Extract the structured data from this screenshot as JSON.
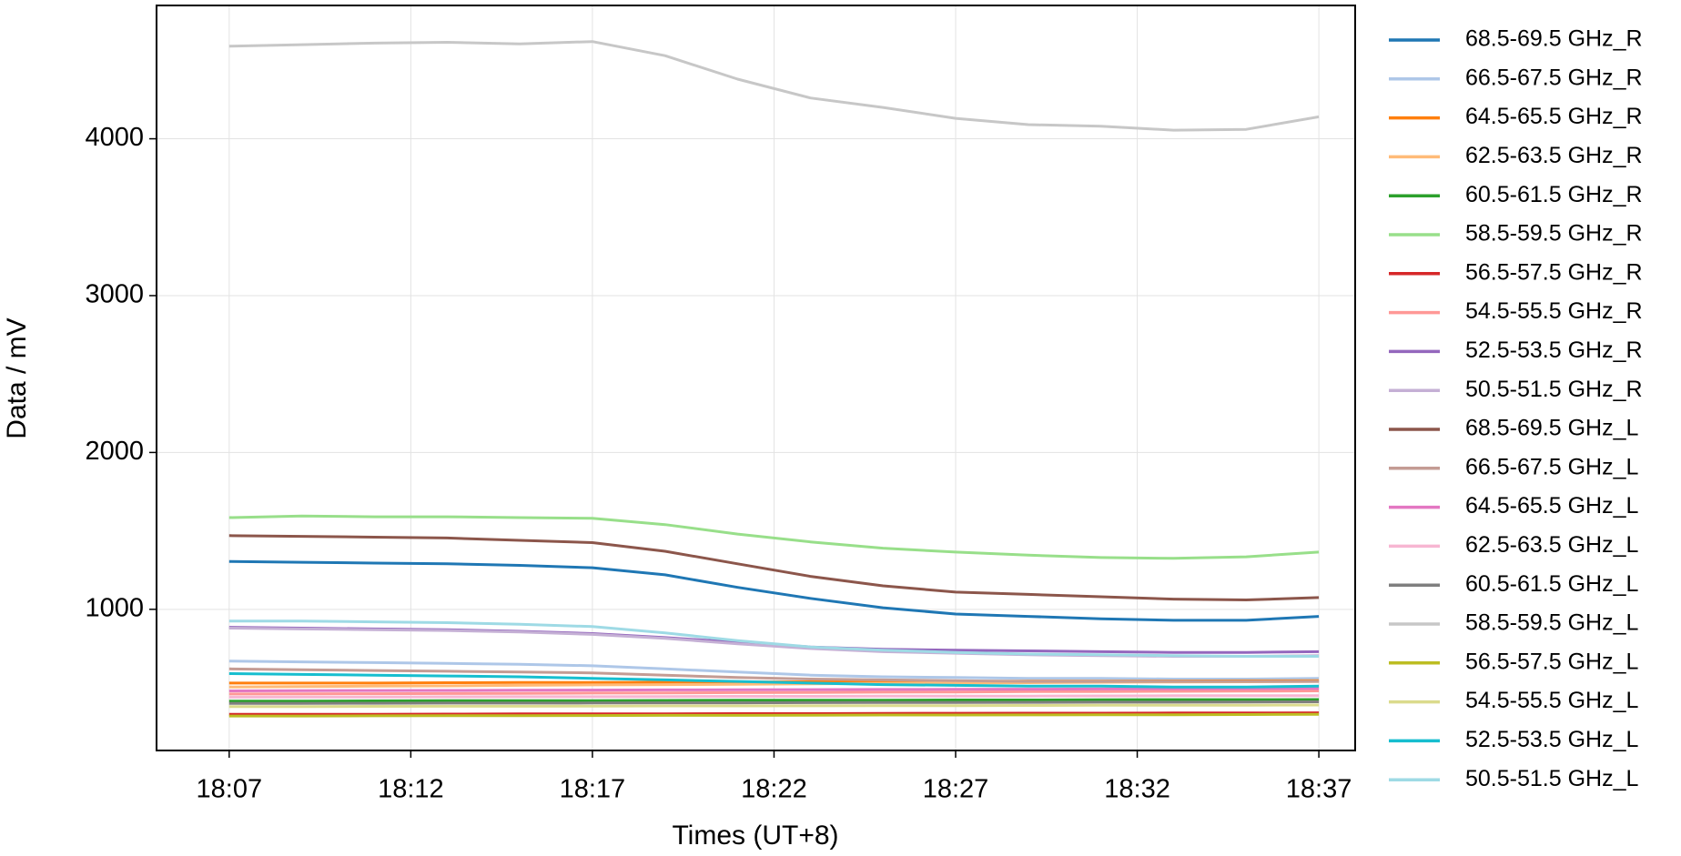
{
  "chart_data": {
    "type": "line",
    "xlabel": "Times (UT+8)",
    "ylabel": "Data / mV",
    "x": [
      "18:07",
      "18:09",
      "18:11",
      "18:13",
      "18:15",
      "18:17",
      "18:19",
      "18:21",
      "18:23",
      "18:25",
      "18:27",
      "18:29",
      "18:31",
      "18:33",
      "18:35",
      "18:37"
    ],
    "xlim": [
      "18:05",
      "18:38"
    ],
    "xticks": [
      "18:07",
      "18:12",
      "18:17",
      "18:22",
      "18:27",
      "18:32",
      "18:37"
    ],
    "ylim": [
      100,
      4850
    ],
    "yticks": [
      1000,
      2000,
      3000,
      4000
    ],
    "grid": true,
    "legend": "outside right",
    "series": [
      {
        "name": "68.5-69.5 GHz_R",
        "color": "#1f77b4",
        "values": [
          1305,
          1300,
          1295,
          1290,
          1280,
          1265,
          1220,
          1140,
          1070,
          1010,
          970,
          955,
          940,
          930,
          930,
          955
        ]
      },
      {
        "name": "66.5-67.5 GHz_R",
        "color": "#aec7e8",
        "values": [
          670,
          665,
          660,
          655,
          650,
          640,
          620,
          600,
          580,
          570,
          565,
          560,
          560,
          555,
          555,
          560
        ]
      },
      {
        "name": "64.5-65.5 GHz_R",
        "color": "#ff7f0e",
        "values": [
          530,
          530,
          530,
          532,
          533,
          533,
          535,
          537,
          538,
          540,
          540,
          542,
          542,
          543,
          544,
          545
        ]
      },
      {
        "name": "62.5-63.5 GHz_R",
        "color": "#ffbb78",
        "values": [
          505,
          507,
          510,
          512,
          515,
          518,
          520,
          522,
          525,
          528,
          530,
          532,
          535,
          537,
          538,
          540
        ]
      },
      {
        "name": "60.5-61.5 GHz_R",
        "color": "#2ca02c",
        "values": [
          415,
          415,
          416,
          417,
          418,
          418,
          419,
          420,
          420,
          421,
          422,
          422,
          423,
          424,
          424,
          425
        ]
      },
      {
        "name": "58.5-59.5 GHz_R",
        "color": "#98df8a",
        "values": [
          1585,
          1595,
          1590,
          1590,
          1585,
          1580,
          1540,
          1480,
          1430,
          1390,
          1365,
          1345,
          1330,
          1325,
          1335,
          1365
        ]
      },
      {
        "name": "56.5-57.5 GHz_R",
        "color": "#d62728",
        "values": [
          330,
          330,
          331,
          332,
          333,
          333,
          334,
          335,
          335,
          336,
          337,
          338,
          338,
          339,
          339,
          340
        ]
      },
      {
        "name": "54.5-55.5 GHz_R",
        "color": "#ff9896",
        "values": [
          460,
          461,
          462,
          463,
          464,
          466,
          467,
          469,
          470,
          472,
          473,
          475,
          476,
          477,
          478,
          480
        ]
      },
      {
        "name": "52.5-53.5 GHz_R",
        "color": "#9467bd",
        "values": [
          885,
          880,
          875,
          870,
          860,
          845,
          820,
          790,
          760,
          745,
          740,
          735,
          730,
          725,
          725,
          730
        ]
      },
      {
        "name": "50.5-51.5 GHz_R",
        "color": "#c5b0d5",
        "values": [
          880,
          875,
          870,
          865,
          855,
          840,
          815,
          780,
          750,
          730,
          720,
          710,
          705,
          700,
          700,
          705
        ]
      },
      {
        "name": "68.5-69.5 GHz_L",
        "color": "#8c564b",
        "values": [
          1470,
          1465,
          1460,
          1455,
          1440,
          1425,
          1370,
          1290,
          1210,
          1150,
          1110,
          1095,
          1080,
          1065,
          1060,
          1075
        ]
      },
      {
        "name": "66.5-67.5 GHz_L",
        "color": "#c49c94",
        "values": [
          620,
          615,
          610,
          605,
          600,
          595,
          580,
          565,
          555,
          550,
          545,
          540,
          540,
          540,
          540,
          540
        ]
      },
      {
        "name": "64.5-65.5 GHz_L",
        "color": "#e377c2",
        "values": [
          480,
          481,
          482,
          483,
          484,
          485,
          486,
          487,
          488,
          489,
          490,
          491,
          492,
          493,
          494,
          495
        ]
      },
      {
        "name": "62.5-63.5 GHz_L",
        "color": "#f7b6d2",
        "values": [
          440,
          441,
          441,
          442,
          443,
          443,
          444,
          445,
          445,
          446,
          447,
          447,
          448,
          449,
          449,
          450
        ]
      },
      {
        "name": "60.5-61.5 GHz_L",
        "color": "#7f7f7f",
        "values": [
          400,
          400,
          401,
          402,
          402,
          403,
          404,
          404,
          405,
          406,
          406,
          407,
          408,
          408,
          409,
          410
        ]
      },
      {
        "name": "58.5-59.5 GHz_L",
        "color": "#c7c7c7",
        "values": [
          4590,
          4600,
          4610,
          4615,
          4605,
          4620,
          4530,
          4380,
          4260,
          4200,
          4130,
          4090,
          4080,
          4055,
          4060,
          4140
        ]
      },
      {
        "name": "56.5-57.5 GHz_L",
        "color": "#bcbd22",
        "values": [
          320,
          320,
          321,
          322,
          322,
          323,
          324,
          324,
          325,
          326,
          326,
          327,
          328,
          328,
          329,
          330
        ]
      },
      {
        "name": "54.5-55.5 GHz_L",
        "color": "#dbdb8d",
        "values": [
          380,
          380,
          381,
          382,
          382,
          383,
          384,
          384,
          385,
          386,
          386,
          387,
          388,
          388,
          389,
          390
        ]
      },
      {
        "name": "52.5-53.5 GHz_L",
        "color": "#17becf",
        "values": [
          590,
          585,
          580,
          575,
          570,
          560,
          550,
          540,
          530,
          520,
          515,
          510,
          510,
          505,
          505,
          510
        ]
      },
      {
        "name": "50.5-51.5 GHz_L",
        "color": "#9edae5",
        "values": [
          925,
          925,
          920,
          915,
          905,
          890,
          850,
          800,
          760,
          740,
          725,
          715,
          710,
          705,
          700,
          700
        ]
      }
    ]
  }
}
